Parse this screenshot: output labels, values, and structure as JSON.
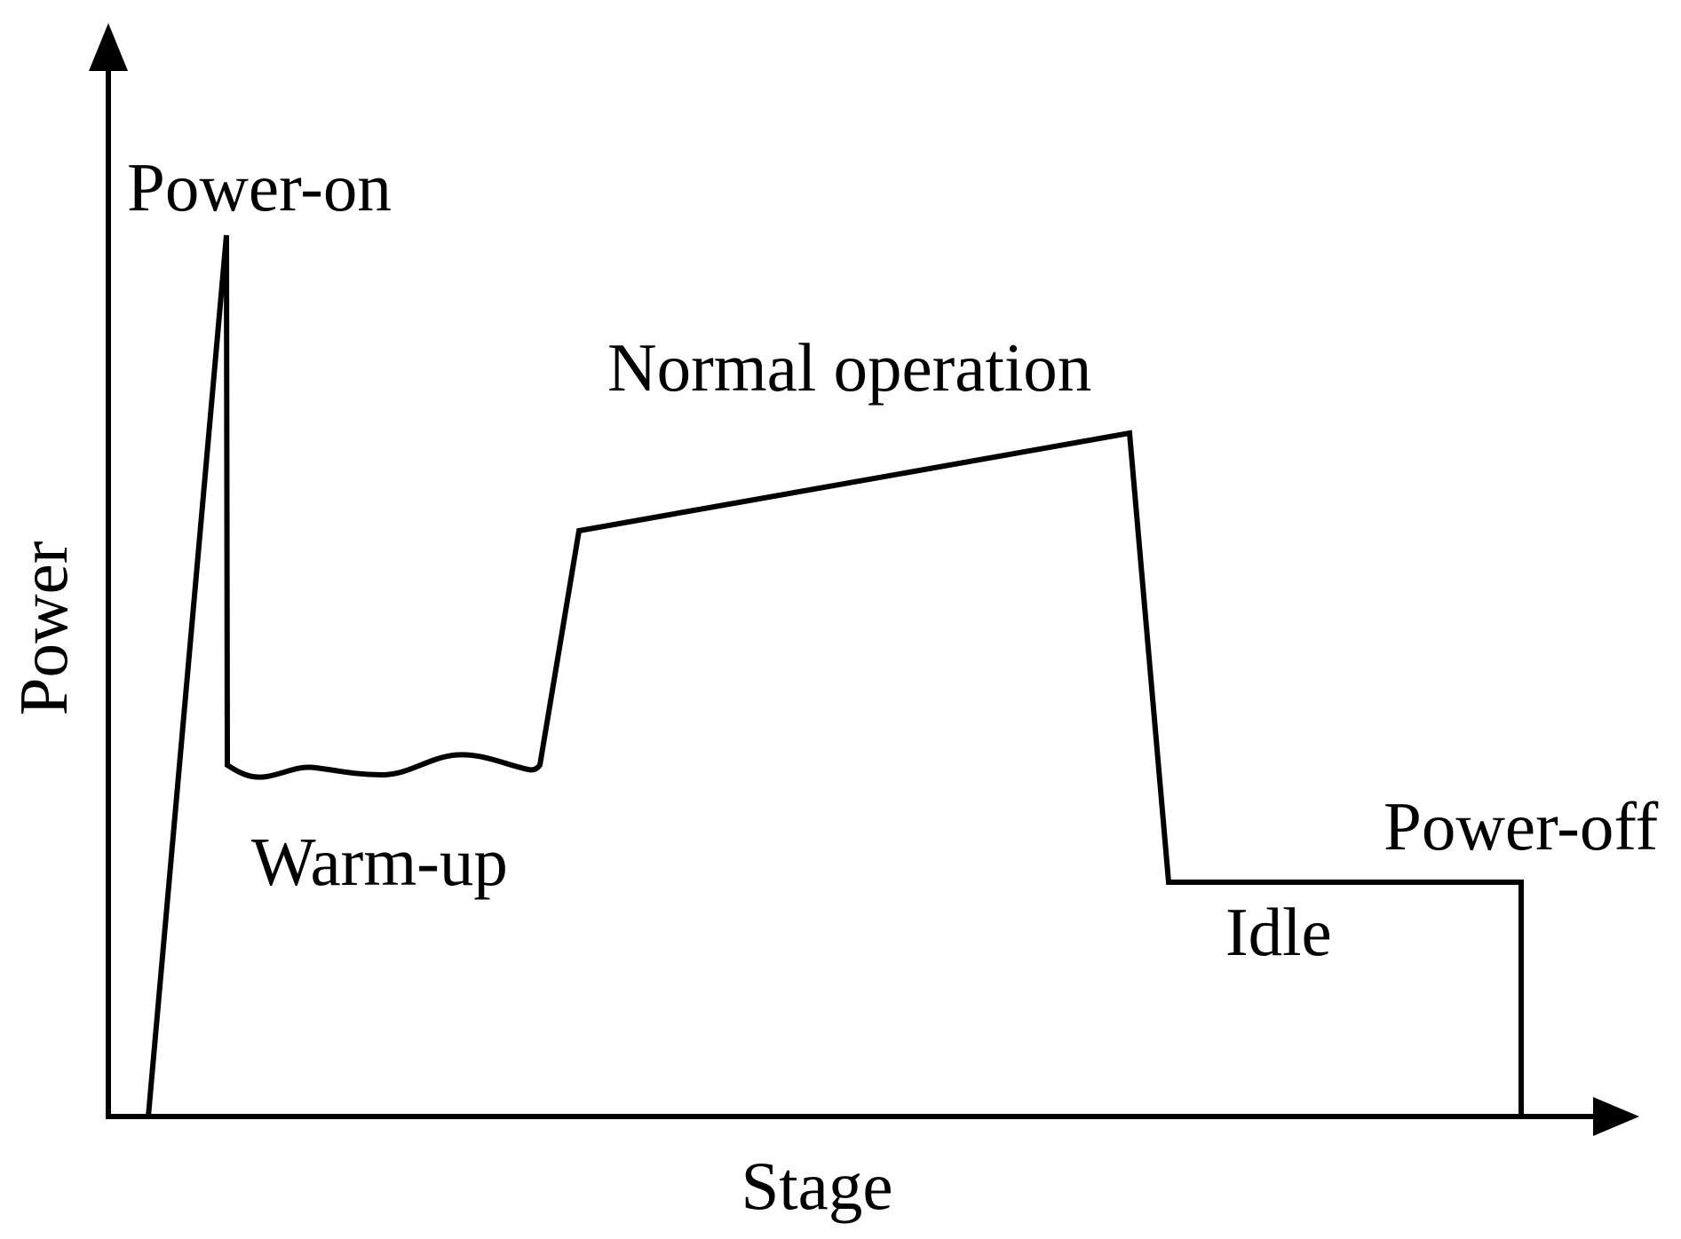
{
  "axes": {
    "y_label": "Power",
    "x_label": "Stage"
  },
  "stages": {
    "power_on": "Power-on",
    "warm_up": "Warm-up",
    "normal_operation": "Normal operation",
    "idle": "Idle",
    "power_off": "Power-off"
  },
  "colors": {
    "line": "#000000",
    "background": "#ffffff"
  }
}
